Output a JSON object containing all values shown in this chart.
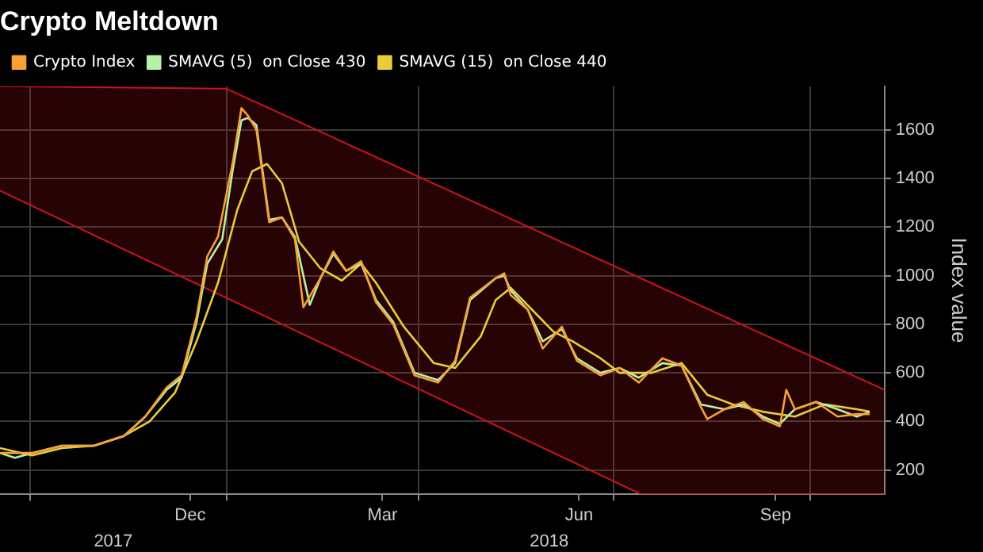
{
  "chart_data": {
    "type": "line",
    "title": "Crypto Meltdown",
    "ylabel": "Index value",
    "xlim": [
      "2017-09-17",
      "2018-11-05"
    ],
    "xticks": [
      {
        "value": "2017-10-01",
        "label": null
      },
      {
        "value": "2017-12-15",
        "label": "Dec"
      },
      {
        "value": "2018-01-01",
        "label": null
      },
      {
        "value": "2018-03-15",
        "label": "Mar"
      },
      {
        "value": "2018-04-01",
        "label": null
      },
      {
        "value": "2018-06-15",
        "label": "Jun"
      },
      {
        "value": "2018-07-01",
        "label": null
      },
      {
        "value": "2018-09-15",
        "label": "Sep"
      },
      {
        "value": "2018-10-01",
        "label": null
      }
    ],
    "x2lim": [
      "2017-09-17",
      "2018-11-05"
    ],
    "x2ticks": [
      {
        "value": "2017-11-09",
        "label": "2017"
      },
      {
        "value": "2018-06-01",
        "label": "2018"
      }
    ],
    "ylim": [
      100,
      1780
    ],
    "yticks": [
      200,
      400,
      600,
      800,
      1000,
      1200,
      1400,
      1600
    ],
    "grid": true,
    "legend": "top left",
    "marker": "none",
    "line_style": "solid",
    "series": [
      {
        "type": "line",
        "color": "#c8141e",
        "x": [
          "2017-09-17",
          "2018-07-14",
          "2018-11-05"
        ],
        "values": [
          1350,
          100,
          100
        ]
      },
      {
        "type": "area",
        "color": "#c8141e",
        "x": [
          "2017-09-17",
          "2018-01-01",
          "2018-11-05"
        ],
        "values": [
          1780,
          1770,
          530
        ]
      },
      {
        "name": "Crypto Index",
        "color": "#f7a033",
        "x": [
          "2017-09-17",
          "2017-10-02",
          "2017-10-16",
          "2017-10-31",
          "2017-11-14",
          "2017-11-24",
          "2017-12-04",
          "2017-12-11",
          "2017-12-18",
          "2017-12-23",
          "2017-12-28",
          "2018-01-04",
          "2018-01-08",
          "2018-01-11",
          "2018-01-15",
          "2018-01-21",
          "2018-01-27",
          "2018-02-02",
          "2018-02-06",
          "2018-02-14",
          "2018-02-20",
          "2018-02-26",
          "2018-03-05",
          "2018-03-12",
          "2018-03-20",
          "2018-03-30",
          "2018-04-10",
          "2018-04-18",
          "2018-04-25",
          "2018-05-07",
          "2018-05-11",
          "2018-05-14",
          "2018-05-22",
          "2018-05-29",
          "2018-06-07",
          "2018-06-14",
          "2018-06-25",
          "2018-07-04",
          "2018-07-13",
          "2018-07-24",
          "2018-08-02",
          "2018-08-11",
          "2018-08-14",
          "2018-08-22",
          "2018-08-31",
          "2018-09-09",
          "2018-09-17",
          "2018-09-20",
          "2018-09-24",
          "2018-10-04",
          "2018-10-14",
          "2018-10-23",
          "2018-10-29"
        ],
        "values": [
          270,
          270,
          300,
          300,
          340,
          420,
          540,
          590,
          830,
          1080,
          1160,
          1470,
          1690,
          1660,
          1600,
          1220,
          1240,
          1150,
          870,
          990,
          1100,
          1020,
          1060,
          890,
          800,
          590,
          560,
          650,
          910,
          990,
          1010,
          920,
          860,
          700,
          790,
          650,
          590,
          620,
          560,
          660,
          630,
          460,
          410,
          450,
          480,
          410,
          380,
          530,
          450,
          480,
          420,
          430,
          430
        ]
      },
      {
        "name": "SMAVG (5)  on Close 430",
        "color": "#b8f0a8",
        "x": [
          "2017-09-17",
          "2017-09-24",
          "2017-10-02",
          "2017-10-16",
          "2017-10-31",
          "2017-11-14",
          "2017-11-24",
          "2017-12-04",
          "2017-12-11",
          "2017-12-18",
          "2017-12-23",
          "2017-12-30",
          "2018-01-04",
          "2018-01-08",
          "2018-01-11",
          "2018-01-15",
          "2018-01-21",
          "2018-01-27",
          "2018-02-02",
          "2018-02-09",
          "2018-02-14",
          "2018-02-20",
          "2018-02-26",
          "2018-03-05",
          "2018-03-12",
          "2018-03-20",
          "2018-03-30",
          "2018-04-10",
          "2018-04-18",
          "2018-04-25",
          "2018-05-07",
          "2018-05-11",
          "2018-05-14",
          "2018-05-22",
          "2018-05-29",
          "2018-06-07",
          "2018-06-14",
          "2018-06-25",
          "2018-07-04",
          "2018-07-13",
          "2018-07-24",
          "2018-08-02",
          "2018-08-11",
          "2018-08-22",
          "2018-08-31",
          "2018-09-09",
          "2018-09-17",
          "2018-09-24",
          "2018-10-04",
          "2018-10-14",
          "2018-10-23",
          "2018-10-29"
        ],
        "values": [
          270,
          250,
          270,
          300,
          300,
          340,
          420,
          530,
          580,
          810,
          1050,
          1150,
          1440,
          1640,
          1650,
          1620,
          1230,
          1240,
          1160,
          880,
          990,
          1090,
          1020,
          1050,
          900,
          810,
          600,
          570,
          640,
          900,
          990,
          1000,
          940,
          860,
          730,
          780,
          660,
          600,
          620,
          580,
          640,
          630,
          470,
          450,
          470,
          420,
          390,
          450,
          480,
          450,
          420,
          440
        ]
      },
      {
        "name": "SMAVG (15)  on Close 440",
        "color": "#e8cc3a",
        "x": [
          "2017-09-17",
          "2017-10-02",
          "2017-10-16",
          "2017-10-31",
          "2017-11-14",
          "2017-11-26",
          "2017-12-08",
          "2017-12-18",
          "2017-12-28",
          "2018-01-06",
          "2018-01-13",
          "2018-01-20",
          "2018-01-27",
          "2018-02-04",
          "2018-02-14",
          "2018-02-24",
          "2018-03-05",
          "2018-03-12",
          "2018-03-25",
          "2018-04-08",
          "2018-04-18",
          "2018-04-30",
          "2018-05-07",
          "2018-05-14",
          "2018-05-24",
          "2018-06-03",
          "2018-06-12",
          "2018-06-25",
          "2018-07-04",
          "2018-07-19",
          "2018-08-02",
          "2018-08-14",
          "2018-08-26",
          "2018-09-09",
          "2018-09-24",
          "2018-10-08",
          "2018-10-23",
          "2018-10-29"
        ],
        "values": [
          290,
          260,
          290,
          300,
          340,
          400,
          520,
          730,
          970,
          1270,
          1430,
          1460,
          1380,
          1140,
          1030,
          980,
          1050,
          970,
          790,
          640,
          620,
          750,
          900,
          950,
          860,
          770,
          730,
          660,
          600,
          600,
          640,
          510,
          470,
          440,
          420,
          470,
          450,
          440
        ]
      }
    ]
  }
}
